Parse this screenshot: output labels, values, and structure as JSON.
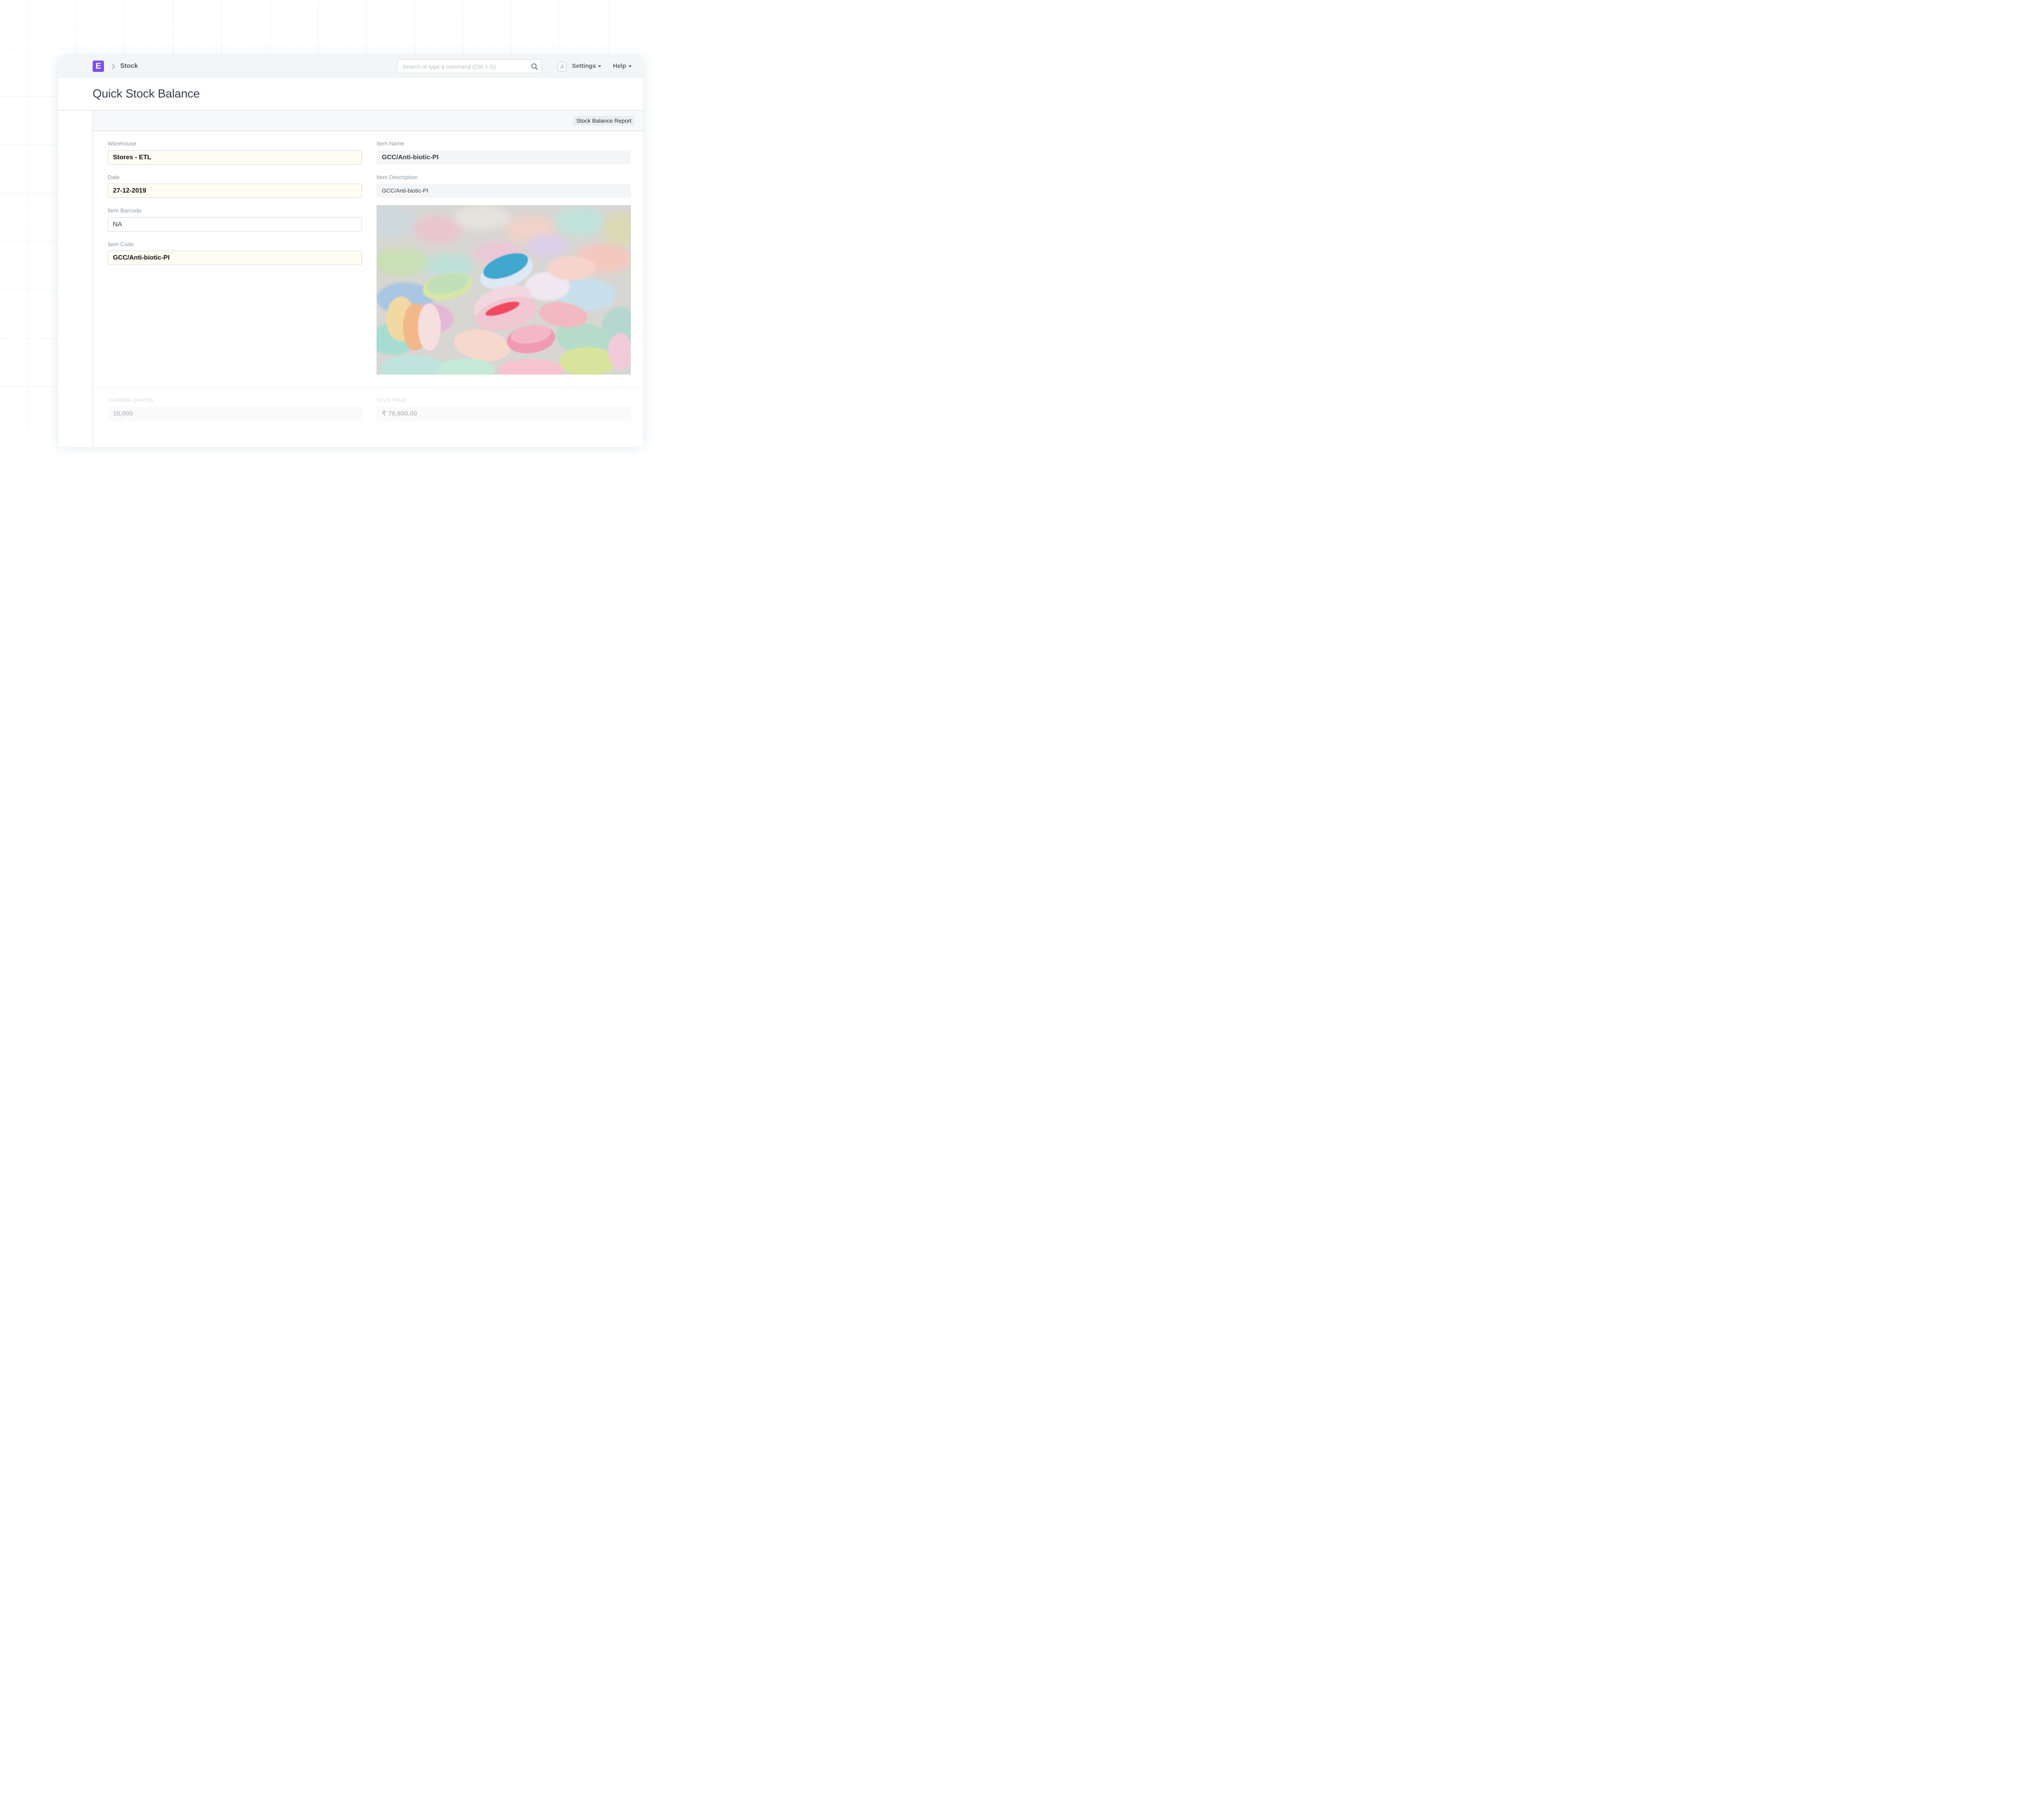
{
  "navbar": {
    "logo_letter": "E",
    "breadcrumb": "Stock",
    "search_placeholder": "Search or type a command (Ctrl + G)",
    "avatar_letter": "A",
    "settings_label": "Settings",
    "help_label": "Help"
  },
  "page": {
    "title": "Quick Stock Balance",
    "report_button": "Stock Balance Report"
  },
  "form": {
    "warehouse": {
      "label": "Warehouse",
      "value": "Stores - ETL"
    },
    "date": {
      "label": "Date",
      "value": "27-12-2019"
    },
    "item_barcode": {
      "label": "Item Barcode",
      "value": "NA"
    },
    "item_code": {
      "label": "Item Code",
      "value": "GCC/Anti-biotic-PI"
    },
    "item_name": {
      "label": "Item Name",
      "value": "GCC/Anti-biotic-PI"
    },
    "item_description": {
      "label": "Item Description",
      "value": "GCC/Anti-biotic-PI"
    },
    "available_qty": {
      "label": "Available Quantity",
      "value": "10,000"
    },
    "stock_value": {
      "label": "Stock Value",
      "value": "₹ 78,600.00"
    }
  },
  "colors": {
    "brand": "#7b4ff0",
    "mandatory_bg": "#fffdf3",
    "label": "#8d99a6"
  },
  "icons": [
    "chevron-right-icon",
    "search-icon",
    "caret-down-icon"
  ]
}
